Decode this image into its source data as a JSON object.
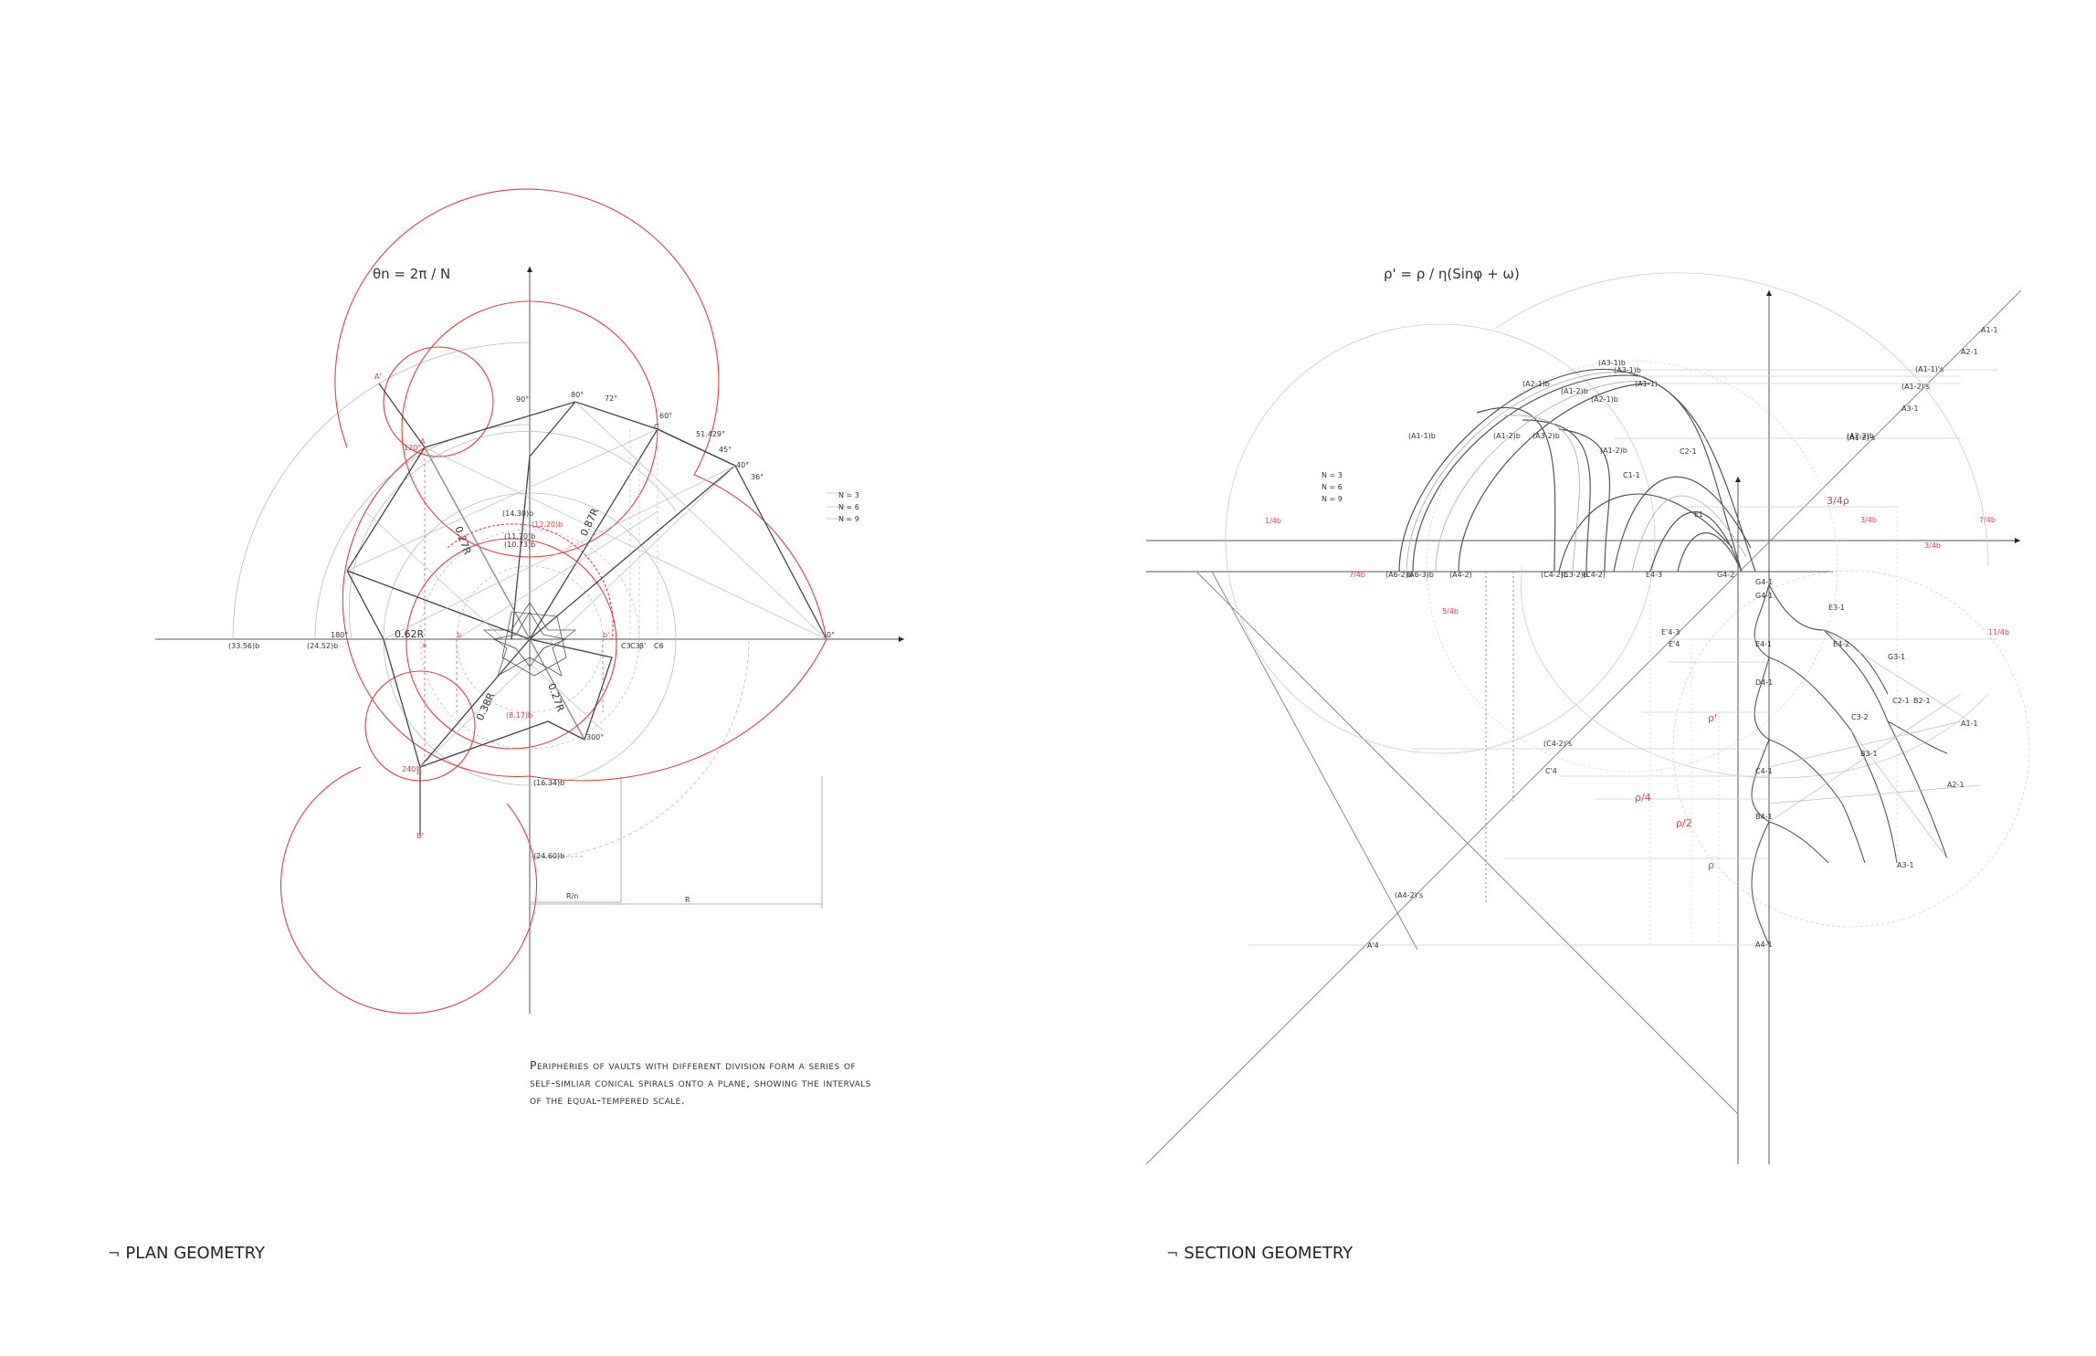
{
  "plan": {
    "formula": "θn = 2π / N",
    "caption": "Peripheries of vaults with different division form a series of self-simliar conical spirals onto a plane, showing the intervals of the equal-tempered scale.",
    "title": "PLAN GEOMETRY",
    "title_mark": "¬",
    "angle_labels": [
      "90°",
      "80°",
      "72°",
      "60°",
      "51.429°",
      "45°",
      "40°",
      "36°",
      "0°",
      "180°",
      "120°",
      "240°",
      "300°"
    ],
    "point_labels": [
      "A'",
      "A",
      "C",
      "B",
      "B'",
      "a",
      "b",
      "b'"
    ],
    "dimension_labels": [
      "(14.30)b",
      "(12.20)b",
      "(11.70)b",
      "(10.73)b",
      "(33.56)b",
      "(24.52)b",
      "0.62R",
      "0.87R",
      "0.38R",
      "0.27R",
      "0.27R",
      "(8.17)b",
      "(16.34)b",
      "(24.60)b",
      "R/n",
      "R"
    ],
    "n_legend": [
      "N = 3",
      "N = 6",
      "N = 9"
    ],
    "x_axis_labels": [
      "C3",
      "C3",
      "β'",
      "C6"
    ]
  },
  "section": {
    "formula": "ρ' = ρ / η(Sinφ + ω)",
    "title": "SECTION GEOMETRY",
    "title_mark": "¬",
    "n_legend": [
      "N = 3",
      "N = 6",
      "N = 9"
    ],
    "arch_labels": [
      "(A3-1)b",
      "(A3-1)b",
      "(A2-1)b",
      "(A1-2)b",
      "(A2-1)b",
      "(A1-1)",
      "(A1-1)b",
      "(A1-2)b",
      "(A3-2)b",
      "(A2-2)b",
      "(A1-2)b",
      "C2-1",
      "C1-1",
      "E1"
    ],
    "base_labels": [
      "(A6-2)b",
      "(A6-3)b",
      "(A4-2)",
      "(C4-2)b",
      "(C3-2)b",
      "(C4-2)",
      "E4-3",
      "G4-2"
    ],
    "diag_labels": [
      "A1-1",
      "A2-1",
      "(A1-1)'s",
      "(A1-2)'s",
      "A3-1",
      "(A1-2)'s"
    ],
    "ratio_labels": [
      "3/4ρ",
      "ρ'",
      "ρ/4",
      "ρ/2",
      "ρ"
    ],
    "right_labels": [
      "G4-1",
      "G4-1",
      "E4-1",
      "E3-1",
      "E4-2",
      "G3-1",
      "D4-1",
      "C2-1",
      "B2-1",
      "C3-2",
      "A1-1",
      "C4-1",
      "B3-1",
      "A2-1",
      "B4-1",
      "A3-1",
      "A4-1"
    ],
    "left_labels": [
      "E'4-3",
      "E'4",
      "(C4-2)'s",
      "C'4",
      "(A4-2)'s",
      "A'4"
    ],
    "red_small": [
      "1/4b",
      "7/4b",
      "5/4b",
      "3/4b",
      "3/4b",
      "7/4b",
      "11/4b"
    ]
  }
}
